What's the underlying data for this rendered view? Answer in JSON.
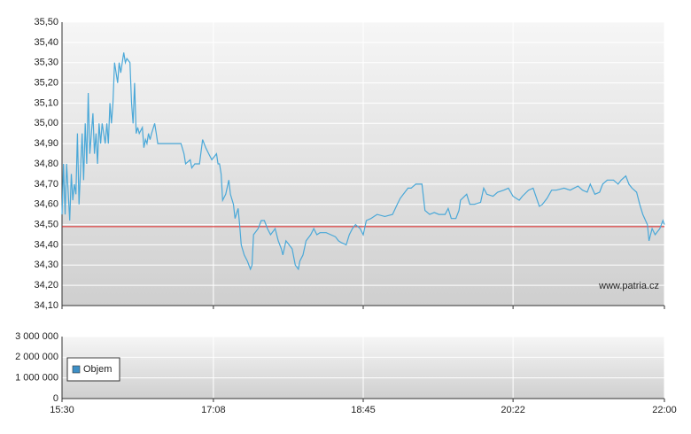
{
  "chart_data": [
    {
      "type": "line",
      "xlim": [
        930,
        1320
      ],
      "xticks": [
        {
          "value": 930,
          "label": "15:30"
        },
        {
          "value": 1028,
          "label": "17:08"
        },
        {
          "value": 1125,
          "label": "18:45"
        },
        {
          "value": 1222,
          "label": "20:22"
        },
        {
          "value": 1320,
          "label": "22:00"
        }
      ],
      "ylim": [
        34.1,
        35.5
      ],
      "yticks": [
        {
          "value": 34.1,
          "label": "34,10"
        },
        {
          "value": 34.2,
          "label": "34,20"
        },
        {
          "value": 34.3,
          "label": "34,30"
        },
        {
          "value": 34.4,
          "label": "34,40"
        },
        {
          "value": 34.5,
          "label": "34,50"
        },
        {
          "value": 34.6,
          "label": "34,60"
        },
        {
          "value": 34.7,
          "label": "34,70"
        },
        {
          "value": 34.8,
          "label": "34,80"
        },
        {
          "value": 34.9,
          "label": "34,90"
        },
        {
          "value": 35.0,
          "label": "35,00"
        },
        {
          "value": 35.1,
          "label": "35,10"
        },
        {
          "value": 35.2,
          "label": "35,20"
        },
        {
          "value": 35.3,
          "label": "35,30"
        },
        {
          "value": 35.4,
          "label": "35,40"
        },
        {
          "value": 35.5,
          "label": "35,50"
        }
      ],
      "grid": true,
      "reference_line": 34.49,
      "reference_color": "#dd2222",
      "annotation": "www.patria.cz",
      "series": [
        {
          "color": "#4aa8d8",
          "x": [
            930,
            931,
            932,
            933,
            935,
            936,
            937,
            938,
            939,
            940,
            941,
            943,
            944,
            945,
            946,
            947,
            948,
            950,
            951,
            952,
            953,
            954,
            955,
            956,
            958,
            959,
            960,
            961,
            962,
            963,
            964,
            966,
            967,
            968,
            969,
            970,
            971,
            972,
            974,
            975,
            976,
            977,
            978,
            979,
            980,
            982,
            983,
            984,
            985,
            986,
            987,
            988,
            990,
            991,
            992,
            993,
            1007,
            1009,
            1010,
            1013,
            1014,
            1016,
            1019,
            1021,
            1023,
            1025,
            1027,
            1030,
            1031,
            1032,
            1033,
            1034,
            1036,
            1038,
            1039,
            1041,
            1042,
            1044,
            1045,
            1046,
            1048,
            1050,
            1052,
            1053,
            1054,
            1057,
            1059,
            1061,
            1063,
            1065,
            1068,
            1070,
            1072,
            1073,
            1075,
            1077,
            1079,
            1081,
            1083,
            1084,
            1086,
            1088,
            1091,
            1093,
            1095,
            1097,
            1101,
            1104,
            1107,
            1109,
            1111,
            1114,
            1116,
            1118,
            1120,
            1123,
            1125,
            1127,
            1130,
            1132,
            1134,
            1139,
            1144,
            1147,
            1149,
            1151,
            1154,
            1156,
            1159,
            1163,
            1165,
            1168,
            1171,
            1174,
            1178,
            1180,
            1182,
            1185,
            1187,
            1188,
            1192,
            1194,
            1197,
            1201,
            1203,
            1205,
            1209,
            1212,
            1216,
            1219,
            1222,
            1226,
            1228,
            1232,
            1235,
            1239,
            1241,
            1244,
            1247,
            1250,
            1255,
            1259,
            1264,
            1267,
            1270,
            1272,
            1275,
            1278,
            1280,
            1283,
            1287,
            1290,
            1292,
            1295,
            1297,
            1299,
            1302,
            1304,
            1306,
            1309,
            1310,
            1312,
            1314,
            1317,
            1319,
            1320
          ],
          "values": [
            34.55,
            34.8,
            34.55,
            34.8,
            34.52,
            34.75,
            34.62,
            34.7,
            34.65,
            34.95,
            34.6,
            34.95,
            34.72,
            35.0,
            34.8,
            35.15,
            34.85,
            35.05,
            34.85,
            34.95,
            34.8,
            35.0,
            34.9,
            35.0,
            34.9,
            35.0,
            34.9,
            35.1,
            35.0,
            35.1,
            35.3,
            35.2,
            35.3,
            35.25,
            35.3,
            35.35,
            35.3,
            35.32,
            35.3,
            35.1,
            35.0,
            35.2,
            34.95,
            34.98,
            34.95,
            34.98,
            34.88,
            34.92,
            34.9,
            34.95,
            34.92,
            34.95,
            35.0,
            34.95,
            34.9,
            34.9,
            34.9,
            34.85,
            34.8,
            34.82,
            34.78,
            34.8,
            34.8,
            34.92,
            34.88,
            34.85,
            34.82,
            34.85,
            34.8,
            34.8,
            34.75,
            34.62,
            34.65,
            34.72,
            34.65,
            34.6,
            34.53,
            34.58,
            34.5,
            34.4,
            34.35,
            34.32,
            34.28,
            34.3,
            34.45,
            34.48,
            34.52,
            34.52,
            34.48,
            34.45,
            34.48,
            34.42,
            34.38,
            34.35,
            34.42,
            34.4,
            34.38,
            34.3,
            34.28,
            34.32,
            34.35,
            34.42,
            34.45,
            34.48,
            34.45,
            34.46,
            34.46,
            34.45,
            34.44,
            34.42,
            34.41,
            34.4,
            34.45,
            34.48,
            34.5,
            34.48,
            34.45,
            34.52,
            34.53,
            34.54,
            34.55,
            34.54,
            34.55,
            34.6,
            34.63,
            34.65,
            34.68,
            34.68,
            34.7,
            34.7,
            34.57,
            34.55,
            34.56,
            34.55,
            34.55,
            34.58,
            34.53,
            34.53,
            34.57,
            34.62,
            34.65,
            34.6,
            34.6,
            34.61,
            34.68,
            34.65,
            34.64,
            34.66,
            34.67,
            34.68,
            34.64,
            34.62,
            34.64,
            34.67,
            34.68,
            34.59,
            34.6,
            34.63,
            34.67,
            34.67,
            34.68,
            34.67,
            34.69,
            34.67,
            34.66,
            34.7,
            34.65,
            34.66,
            34.7,
            34.72,
            34.72,
            34.7,
            34.72,
            34.74,
            34.7,
            34.68,
            34.66,
            34.6,
            34.55,
            34.5,
            34.42,
            34.48,
            34.45,
            34.48,
            34.52,
            34.5
          ]
        }
      ]
    },
    {
      "type": "bar",
      "xlim": [
        930,
        1320
      ],
      "xticks": [
        {
          "value": 930,
          "label": "15:30"
        },
        {
          "value": 1028,
          "label": "17:08"
        },
        {
          "value": 1125,
          "label": "18:45"
        },
        {
          "value": 1222,
          "label": "20:22"
        },
        {
          "value": 1320,
          "label": "22:00"
        }
      ],
      "ylim": [
        0,
        3000000
      ],
      "yticks": [
        0,
        {
          "value": 1000000,
          "label": "1 000 000"
        },
        {
          "value": 2000000,
          "label": "2 000 000"
        },
        {
          "value": 3000000,
          "label": "3 000 000"
        }
      ],
      "grid": true,
      "legend": "left",
      "series": [
        {
          "name": "Objem",
          "color": "#3d8fc6",
          "x": [],
          "values": []
        }
      ]
    }
  ]
}
